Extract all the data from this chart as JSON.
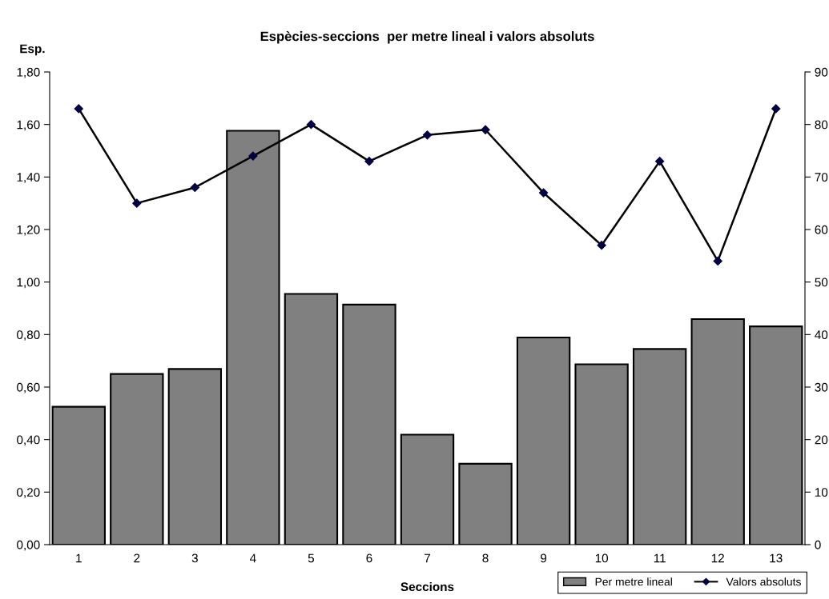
{
  "chart_data": {
    "type": "bar",
    "title": "Espècies-seccions  per metre lineal i valors absoluts",
    "xlabel": "Seccions",
    "ylabel": "Esp.",
    "categories": [
      "1",
      "2",
      "3",
      "4",
      "5",
      "6",
      "7",
      "8",
      "9",
      "10",
      "11",
      "12",
      "13"
    ],
    "series": [
      {
        "name": "Per metre lineal",
        "color": "#808080",
        "values": [
          0.525,
          0.65,
          0.669,
          1.576,
          0.955,
          0.914,
          0.419,
          0.308,
          0.789,
          0.687,
          0.745,
          0.859,
          0.831
        ]
      },
      {
        "name": "Valors absoluts",
        "type": "line",
        "axis": "y2",
        "color": "#000000",
        "marker": "diamond",
        "values": [
          83,
          65,
          68,
          74,
          80,
          73,
          78,
          79,
          67,
          57,
          73,
          54,
          83
        ]
      }
    ],
    "ylim": [
      0,
      1.8
    ],
    "yticks": [
      {
        "value": 0,
        "label": "0,00"
      },
      {
        "value": 0.2,
        "label": "0,20"
      },
      {
        "value": 0.4,
        "label": "0,40"
      },
      {
        "value": 0.6,
        "label": "0,60"
      },
      {
        "value": 0.8,
        "label": "0,80"
      },
      {
        "value": 1.0,
        "label": "1,00"
      },
      {
        "value": 1.2,
        "label": "1,20"
      },
      {
        "value": 1.4,
        "label": "1,40"
      },
      {
        "value": 1.6,
        "label": "1,60"
      },
      {
        "value": 1.8,
        "label": "1,80"
      }
    ],
    "y2lim": [
      0,
      90
    ],
    "y2ticks": [
      0,
      10,
      20,
      30,
      40,
      50,
      60,
      70,
      80,
      90
    ],
    "grid": false,
    "legend": "bottom right"
  }
}
